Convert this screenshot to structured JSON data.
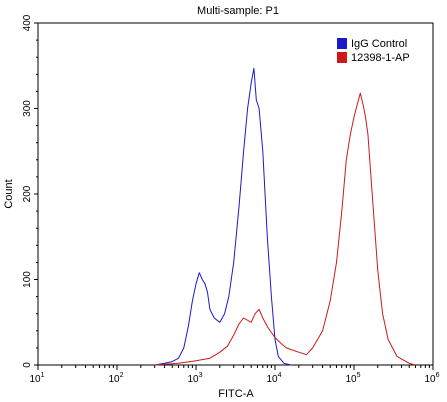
{
  "chart_data": {
    "type": "line",
    "title": "Multi-sample: P1",
    "xlabel": "FITC-A",
    "ylabel": "Count",
    "x_scale": "log10",
    "xlim": [
      10,
      1000000
    ],
    "ylim": [
      0,
      400
    ],
    "x_ticks": [
      {
        "value": 10,
        "base": "10",
        "exp": "1"
      },
      {
        "value": 100,
        "base": "10",
        "exp": "2"
      },
      {
        "value": 1000,
        "base": "10",
        "exp": "3"
      },
      {
        "value": 10000,
        "base": "10",
        "exp": "4"
      },
      {
        "value": 100000,
        "base": "10",
        "exp": "5"
      },
      {
        "value": 1000000,
        "base": "10",
        "exp": "6"
      }
    ],
    "y_ticks": [
      "0",
      "100",
      "200",
      "300",
      "400"
    ],
    "y_tick_values": [
      0,
      100,
      200,
      300,
      400
    ],
    "legend_position": "top-right",
    "series": [
      {
        "name": "IgG Control",
        "color": "#1a1acc",
        "points": [
          [
            300,
            0
          ],
          [
            400,
            2
          ],
          [
            500,
            4
          ],
          [
            600,
            8
          ],
          [
            700,
            20
          ],
          [
            800,
            45
          ],
          [
            900,
            75
          ],
          [
            1000,
            95
          ],
          [
            1100,
            108
          ],
          [
            1200,
            100
          ],
          [
            1300,
            95
          ],
          [
            1400,
            85
          ],
          [
            1500,
            65
          ],
          [
            1700,
            55
          ],
          [
            2000,
            50
          ],
          [
            2300,
            60
          ],
          [
            2600,
            80
          ],
          [
            3000,
            120
          ],
          [
            3500,
            185
          ],
          [
            4000,
            250
          ],
          [
            4500,
            300
          ],
          [
            5000,
            330
          ],
          [
            5400,
            347
          ],
          [
            5800,
            310
          ],
          [
            6300,
            300
          ],
          [
            7000,
            250
          ],
          [
            8000,
            150
          ],
          [
            9000,
            80
          ],
          [
            10000,
            30
          ],
          [
            11000,
            10
          ],
          [
            13000,
            2
          ],
          [
            16000,
            0
          ]
        ]
      },
      {
        "name": "12398-1-AP",
        "color": "#cc1a1a",
        "points": [
          [
            300,
            0
          ],
          [
            600,
            2
          ],
          [
            1000,
            5
          ],
          [
            1500,
            8
          ],
          [
            2000,
            15
          ],
          [
            2500,
            22
          ],
          [
            3000,
            35
          ],
          [
            3500,
            48
          ],
          [
            4000,
            55
          ],
          [
            5000,
            50
          ],
          [
            5600,
            60
          ],
          [
            6300,
            65
          ],
          [
            7000,
            55
          ],
          [
            8000,
            45
          ],
          [
            9000,
            38
          ],
          [
            10000,
            32
          ],
          [
            12000,
            25
          ],
          [
            14000,
            20
          ],
          [
            16000,
            18
          ],
          [
            20000,
            15
          ],
          [
            25000,
            12
          ],
          [
            30000,
            20
          ],
          [
            40000,
            40
          ],
          [
            50000,
            75
          ],
          [
            60000,
            120
          ],
          [
            70000,
            180
          ],
          [
            80000,
            240
          ],
          [
            90000,
            270
          ],
          [
            100000,
            290
          ],
          [
            110000,
            305
          ],
          [
            120000,
            318
          ],
          [
            130000,
            305
          ],
          [
            140000,
            290
          ],
          [
            150000,
            270
          ],
          [
            170000,
            200
          ],
          [
            200000,
            110
          ],
          [
            230000,
            60
          ],
          [
            270000,
            30
          ],
          [
            350000,
            10
          ],
          [
            500000,
            2
          ],
          [
            600000,
            0
          ]
        ]
      }
    ]
  }
}
